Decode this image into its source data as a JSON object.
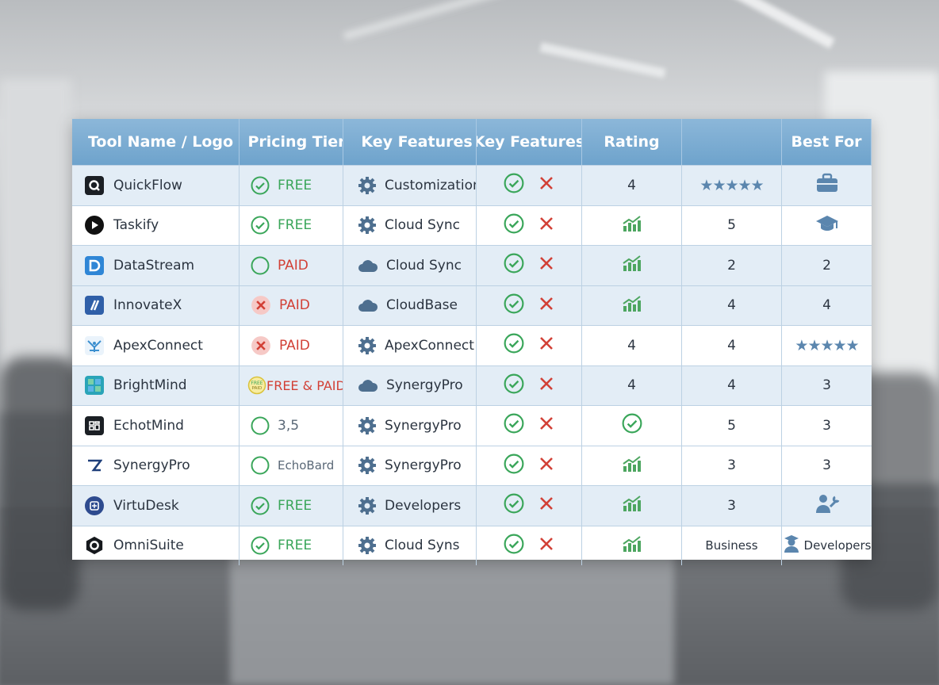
{
  "header": {
    "col1": "Tool Name / Logo",
    "col2": "Pricing Tier",
    "col3": "Key Features",
    "col4": "Key Features",
    "col5": "Rating",
    "col6": "",
    "col7": "Best For"
  },
  "rows": [
    {
      "name": "QuickFlow",
      "price": "FREE",
      "feature": "Customization",
      "rating": "4",
      "col6": "★★★★★",
      "best": ""
    },
    {
      "name": "Taskify",
      "price": "FREE",
      "feature": "Cloud Sync",
      "rating": "",
      "col6": "5",
      "best": ""
    },
    {
      "name": "DataStream",
      "price": "PAID",
      "feature": "Cloud Sync",
      "rating": "",
      "col6": "2",
      "best": "2"
    },
    {
      "name": "InnovateX",
      "price": "PAID",
      "feature": "CloudBase",
      "rating": "",
      "col6": "4",
      "best": "4"
    },
    {
      "name": "ApexConnect",
      "price": "PAID",
      "feature": "ApexConnect",
      "rating": "4",
      "col6": "4",
      "best": "★★★★★"
    },
    {
      "name": "BrightMind",
      "price": "FREE & PAID",
      "feature": "SynergyPro",
      "rating": "4",
      "col6": "4",
      "best": "3"
    },
    {
      "name": "EchotMind",
      "price": "3,5",
      "feature": "SynergyPro",
      "rating": "",
      "col6": "5",
      "best": "3"
    },
    {
      "name": "SynergyPro",
      "price": "EchoBard",
      "feature": "SynergyPro",
      "rating": "",
      "col6": "3",
      "best": "3"
    },
    {
      "name": "VirtuDesk",
      "price": "FREE",
      "feature": "Developers",
      "rating": "",
      "col6": "3",
      "best": ""
    },
    {
      "name": "OmniSuite",
      "price": "FREE",
      "feature": "Cloud Syns",
      "rating": "",
      "col6": "Business",
      "best": "Developers"
    }
  ],
  "colors": {
    "header": "#6ea3cc",
    "check": "#3aa65a",
    "cross": "#d24036",
    "stars": "#5b86ae"
  }
}
